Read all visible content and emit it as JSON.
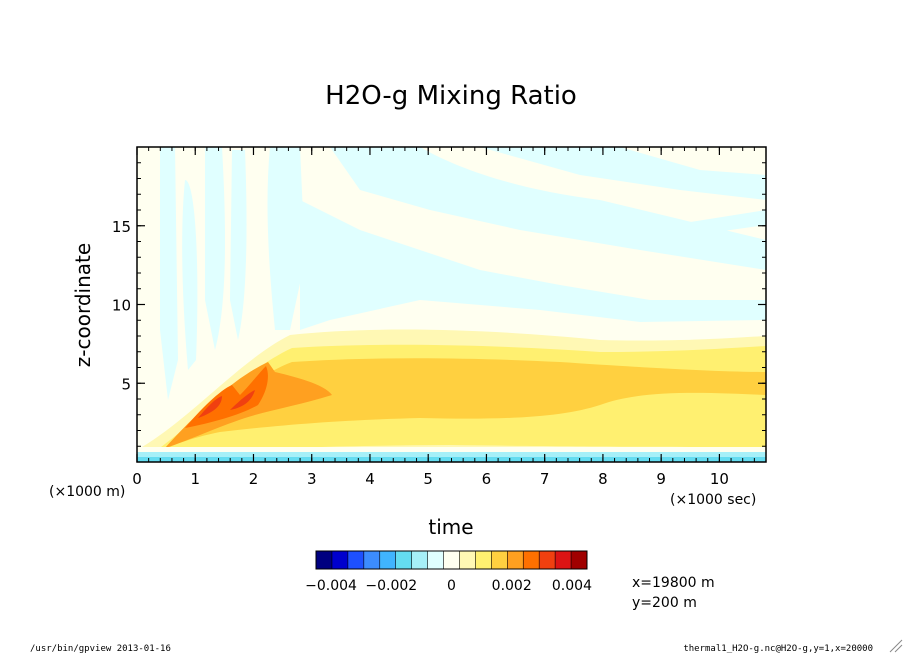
{
  "chart_data": {
    "type": "heatmap",
    "title": "H2O-g Mixing Ratio",
    "xlabel": "time",
    "ylabel": "z-coordinate",
    "x_unit": "(×1000 sec)",
    "y_unit": "(×1000 m)",
    "xlim": [
      0,
      10.8
    ],
    "ylim": [
      0,
      20
    ],
    "x_ticks": [
      "0",
      "1",
      "2",
      "3",
      "4",
      "5",
      "6",
      "7",
      "8",
      "9",
      "10"
    ],
    "y_ticks": [
      "5",
      "10",
      "15"
    ],
    "x_tick_values": [
      0,
      1,
      2,
      3,
      4,
      5,
      6,
      7,
      8,
      9,
      10
    ],
    "y_tick_values": [
      5,
      10,
      15
    ],
    "colorbar": {
      "colors": [
        "#000080",
        "#0000cd",
        "#1e50ff",
        "#3c8cff",
        "#40b4ff",
        "#64dcf0",
        "#a6f0f8",
        "#e0ffff",
        "#fffff0",
        "#fff8b4",
        "#fff070",
        "#ffd040",
        "#ffa020",
        "#ff7000",
        "#f04010",
        "#dc1414",
        "#a00000"
      ],
      "labels": [
        "−0.004",
        "−0.002",
        "0",
        "0.002",
        "0.004"
      ],
      "label_values": [
        -0.004,
        -0.002,
        0,
        0.002,
        0.004
      ]
    },
    "regions": [
      {
        "name": "background-near-zero",
        "color": "#fffff0",
        "level": 0.0
      },
      {
        "name": "negative-bands-upper",
        "color": "#e0ffff",
        "level": -0.0005
      },
      {
        "name": "moist-layer-outer",
        "color": "#fff8b4",
        "level": 0.0005
      },
      {
        "name": "moist-layer",
        "color": "#fff070",
        "level": 0.001
      },
      {
        "name": "moist-layer-core",
        "color": "#ffd040",
        "level": 0.0015
      },
      {
        "name": "thermal-plume",
        "color": "#ffa020",
        "level": 0.002
      },
      {
        "name": "thermal-plume-core",
        "color": "#ff7000",
        "level": 0.0025
      },
      {
        "name": "thermal-plume-peak",
        "color": "#f04010",
        "level": 0.003
      },
      {
        "name": "surface-negative-layer",
        "color": "#64dcf0",
        "level": -0.001
      }
    ],
    "grid": false,
    "legend": "bottom"
  },
  "annotations": {
    "position_x": "x=19800 m",
    "position_y": "y=200 m",
    "footer_left": "/usr/bin/gpview  2013-01-16",
    "footer_right": "thermal1_H2O-g.nc@H2O-g,y=1,x=20000"
  }
}
